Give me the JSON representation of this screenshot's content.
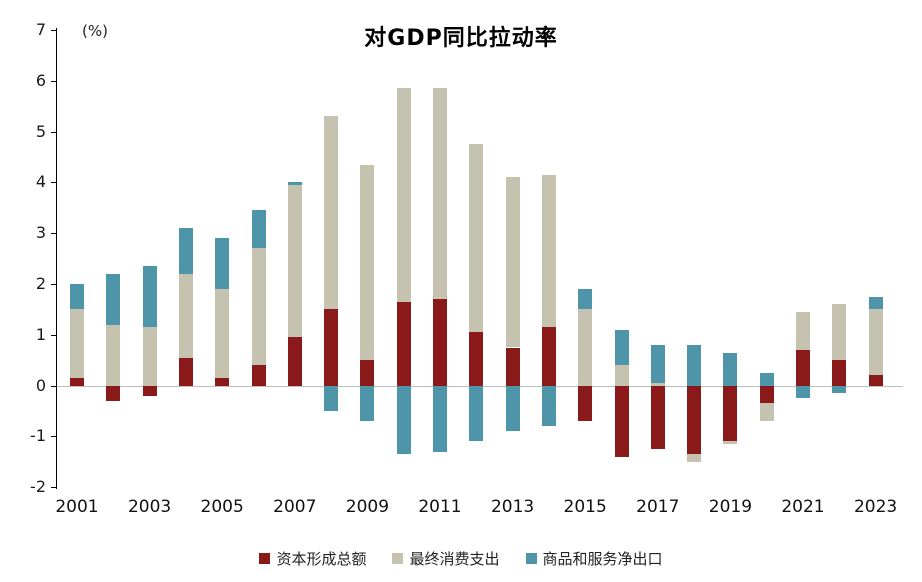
{
  "chart_data": {
    "type": "bar",
    "stacked": true,
    "title": "对GDP同比拉动率",
    "ylabel": "(%)",
    "ylim": [
      -2,
      7
    ],
    "yticks": [
      7,
      6,
      5,
      4,
      3,
      2,
      1,
      0,
      -1,
      -2
    ],
    "grid": false,
    "legend_position": "bottom",
    "categories": [
      2001,
      2002,
      2003,
      2004,
      2005,
      2006,
      2007,
      2008,
      2009,
      2010,
      2011,
      2012,
      2013,
      2014,
      2015,
      2016,
      2017,
      2018,
      2019,
      2020,
      2021,
      2022,
      2023
    ],
    "xtick_labels": [
      "2001",
      "2003",
      "2005",
      "2007",
      "2009",
      "2011",
      "2013",
      "2015",
      "2017",
      "2019",
      "2021",
      "2023"
    ],
    "series": [
      {
        "name": "资本形成总额",
        "color": "#8A1A1A",
        "values": [
          0.15,
          -0.3,
          -0.2,
          0.55,
          0.15,
          0.4,
          0.95,
          1.5,
          0.5,
          1.65,
          1.7,
          1.05,
          0.75,
          1.15,
          -0.7,
          -1.4,
          -1.25,
          -1.35,
          -1.1,
          -0.35,
          0.7,
          0.5,
          0.2
        ]
      },
      {
        "name": "最终消费支出",
        "color": "#C5C2B0",
        "values": [
          1.35,
          1.2,
          1.15,
          1.65,
          1.75,
          2.3,
          3.0,
          3.8,
          3.85,
          4.2,
          4.15,
          3.7,
          3.35,
          3.0,
          1.5,
          0.4,
          0.05,
          -0.15,
          -0.05,
          -0.35,
          0.75,
          1.1,
          1.3
        ]
      },
      {
        "name": "商品和服务净出口",
        "color": "#4E95A9",
        "values": [
          0.5,
          1.0,
          1.2,
          0.9,
          1.0,
          0.75,
          0.05,
          -0.5,
          -0.7,
          -1.35,
          -1.3,
          -1.1,
          -0.9,
          -0.8,
          0.4,
          0.7,
          0.75,
          0.8,
          0.65,
          0.25,
          -0.25,
          -0.15,
          0.25
        ]
      }
    ]
  }
}
